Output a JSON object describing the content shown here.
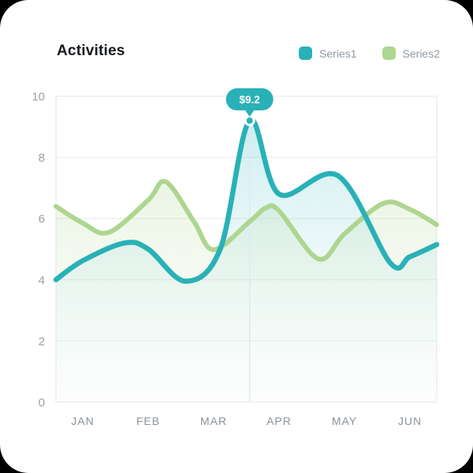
{
  "header": {
    "title": "Activities"
  },
  "legend": {
    "items": [
      {
        "label": "Series1",
        "color": "#29b1b7"
      },
      {
        "label": "Series2",
        "color": "#aed690"
      }
    ]
  },
  "chart_data": {
    "type": "area",
    "title": "Activities",
    "categories": [
      "JAN",
      "FEB",
      "MAR",
      "APR",
      "MAY",
      "JUN"
    ],
    "y_ticks": [
      0,
      2,
      4,
      6,
      8,
      10
    ],
    "ylim": [
      0,
      10
    ],
    "grid": "horizontal",
    "legend_position": "top-right",
    "x_unit_note": "x in month-index units, 0=JAN .. 5=JUN, curve spans plot edges",
    "series": [
      {
        "name": "Series1",
        "color": "#29b1b7",
        "fill_from": "rgba(86,196,203,0.34)",
        "fill_to": "rgba(225,241,243,0.05)",
        "line_width": 6.5,
        "points": [
          [
            -0.41,
            4.0
          ],
          [
            0,
            4.62
          ],
          [
            0.64,
            5.2
          ],
          [
            1.0,
            5.0
          ],
          [
            1.57,
            3.95
          ],
          [
            2.1,
            5.0
          ],
          [
            2.55,
            9.2
          ],
          [
            3.0,
            6.8
          ],
          [
            3.9,
            7.4
          ],
          [
            4.7,
            4.55
          ],
          [
            5.0,
            4.75
          ],
          [
            5.41,
            5.15
          ]
        ]
      },
      {
        "name": "Series2",
        "color": "#aed690",
        "fill_from": "rgba(174,214,144,0.42)",
        "fill_to": "rgba(240,247,236,0.10)",
        "line_width": 6,
        "points": [
          [
            -0.41,
            6.4
          ],
          [
            0,
            5.85
          ],
          [
            0.4,
            5.55
          ],
          [
            1.0,
            6.6
          ],
          [
            1.27,
            7.2
          ],
          [
            1.7,
            5.9
          ],
          [
            2.0,
            4.98
          ],
          [
            2.55,
            5.9
          ],
          [
            2.8,
            6.35
          ],
          [
            3.0,
            6.25
          ],
          [
            3.6,
            4.68
          ],
          [
            4.0,
            5.5
          ],
          [
            4.6,
            6.5
          ],
          [
            5.0,
            6.3
          ],
          [
            5.41,
            5.8
          ]
        ]
      }
    ],
    "highlight": {
      "series": "Series1",
      "x": 2.55,
      "value": 9.2,
      "label": "$9.2"
    }
  },
  "colors": {
    "page_bg": "#000000",
    "card_bg": "#ffffff",
    "grid": "#e6e8ea",
    "plot_border": "#e3e6e8",
    "axis_text": "#9aa1a9",
    "month_text": "#8b9299",
    "legend_text": "#8d99a3",
    "crosshair": "#dde8f6",
    "tooltip_bg": "#29b1b7",
    "tooltip_text": "#ffffff",
    "title_text": "#15181c"
  }
}
